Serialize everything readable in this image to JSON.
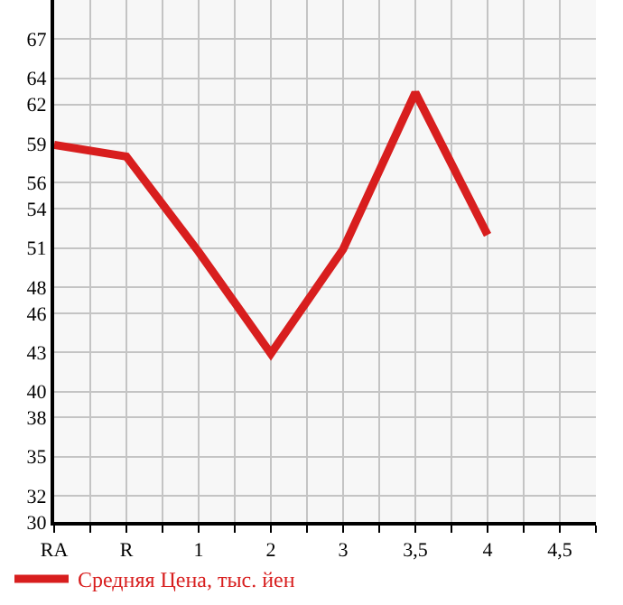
{
  "chart_data": {
    "type": "line",
    "categories": [
      "RA",
      "R",
      "1",
      "2",
      "3",
      "3,5",
      "4",
      "4,5"
    ],
    "series": [
      {
        "name": "Средняя Цена, тыс. йен",
        "color": "#d81e1e",
        "values": [
          58.9,
          58.0,
          50.7,
          42.9,
          50.9,
          62.9,
          52.0,
          null
        ]
      }
    ],
    "ylim": [
      30,
      70
    ],
    "yticks": [
      30,
      32,
      35,
      38,
      40,
      43,
      46,
      48,
      51,
      54,
      56,
      59,
      62,
      64,
      67
    ],
    "grid": true,
    "legend": "bottom",
    "marker": "none",
    "line_style": "solid"
  }
}
